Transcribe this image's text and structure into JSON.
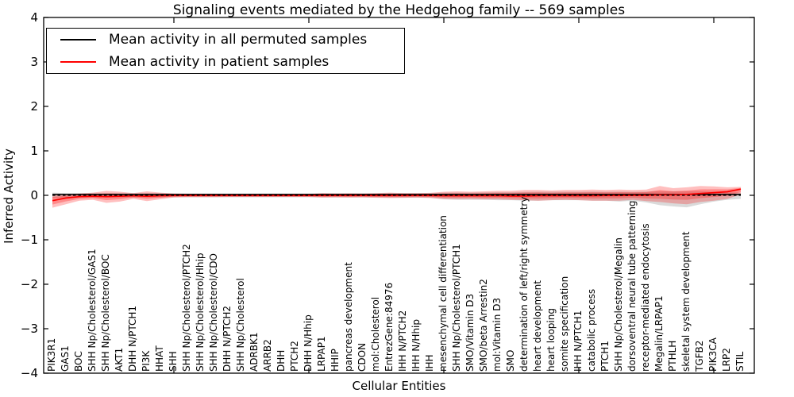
{
  "figure": {
    "title": "Signaling events mediated by the Hedgehog family -- 569 samples",
    "xlabel": "Cellular Entities",
    "ylabel": "Inferred Activity"
  },
  "legend": {
    "items": [
      {
        "label": "Mean activity in all permuted samples",
        "color": "#000000"
      },
      {
        "label": "Mean activity in patient samples",
        "color": "#ff0000"
      }
    ],
    "position": "upper left"
  },
  "colors": {
    "permuted_line": "#000000",
    "permuted_band": "#bbbbbb",
    "patient_line": "#ff0000",
    "patient_band": "#ff0000",
    "zero_line": "#000000",
    "frame": "#000000"
  },
  "chart_data": {
    "type": "line",
    "title": "Signaling events mediated by the Hedgehog family -- 569 samples",
    "xlabel": "Cellular Entities",
    "ylabel": "Inferred Activity",
    "ylim": [
      -4,
      4
    ],
    "yticks": [
      -4,
      -3,
      -2,
      -1,
      0,
      1,
      2,
      3,
      4
    ],
    "grid": false,
    "legend_position": "upper left",
    "zero_reference_line": {
      "y": 0,
      "style": "dashed",
      "color": "#000000"
    },
    "categories": [
      "PIK3R1",
      "GAS1",
      "BOC",
      "SHH Np/Cholesterol/GAS1",
      "SHH Np/Cholesterol/BOC",
      "AKT1",
      "DHH N/PTCH1",
      "PI3K",
      "HHAT",
      "SHH",
      "SHH Np/Cholesterol/PTCH2",
      "SHH Np/Cholesterol/Hhip",
      "SHH Np/Cholesterol/CDO",
      "DHH N/PTCH2",
      "SHH Np/Cholesterol",
      "ADRBK1",
      "ARRB2",
      "DHH",
      "PTCH2",
      "DHH N/Hhip",
      "LRPAP1",
      "HHIP",
      "pancreas development",
      "CDON",
      "mol:Cholesterol",
      "EntrezGene:84976",
      "IHH N/PTCH2",
      "IHH N/Hhip",
      "IHH",
      "mesenchymal cell differentiation",
      "SHH Np/Cholesterol/PTCH1",
      "SMO/Vitamin D3",
      "SMO/beta Arrestin2",
      "mol:Vitamin D3",
      "SMO",
      "determination of left/right symmetry",
      "heart development",
      "heart looping",
      "somite specification",
      "IHH N/PTCH1",
      "catabolic process",
      "PTCH1",
      "SHH Np/Cholesterol/Megalin",
      "dorsoventral neural tube patterning",
      "receptor-mediated endocytosis",
      "Megalin/LRPAP1",
      "PTHLH",
      "skeletal system development",
      "TGFB2",
      "PIK3CA",
      "LRP2",
      "STIL"
    ],
    "series": [
      {
        "name": "Mean activity in all permuted samples",
        "color": "#000000",
        "style": "solid",
        "values": [
          0.02,
          0.02,
          0.02,
          0.02,
          0.02,
          0.02,
          0.02,
          0.02,
          0.02,
          0.02,
          0.02,
          0.02,
          0.02,
          0.02,
          0.02,
          0.02,
          0.02,
          0.02,
          0.02,
          0.02,
          0.02,
          0.02,
          0.02,
          0.02,
          0.02,
          0.02,
          0.02,
          0.02,
          0.02,
          0.02,
          0.02,
          0.02,
          0.02,
          0.02,
          0.02,
          0.02,
          0.02,
          0.02,
          0.02,
          0.02,
          0.02,
          0.02,
          0.02,
          0.02,
          0.02,
          0.02,
          0.02,
          0.02,
          0.02,
          0.02,
          0.02,
          0.02
        ],
        "band_upper": [
          0.06,
          0.05,
          0.05,
          0.05,
          0.05,
          0.05,
          0.05,
          0.05,
          0.05,
          0.04,
          0.04,
          0.04,
          0.04,
          0.04,
          0.04,
          0.04,
          0.04,
          0.04,
          0.04,
          0.04,
          0.045,
          0.045,
          0.045,
          0.045,
          0.045,
          0.05,
          0.05,
          0.05,
          0.05,
          0.06,
          0.06,
          0.06,
          0.065,
          0.07,
          0.07,
          0.075,
          0.08,
          0.08,
          0.08,
          0.08,
          0.085,
          0.08,
          0.085,
          0.08,
          0.085,
          0.09,
          0.09,
          0.09,
          0.09,
          0.08,
          0.07,
          0.06
        ],
        "band_lower": [
          -0.06,
          -0.05,
          -0.05,
          -0.05,
          -0.05,
          -0.05,
          -0.05,
          -0.05,
          -0.05,
          -0.045,
          -0.045,
          -0.045,
          -0.045,
          -0.045,
          -0.045,
          -0.045,
          -0.045,
          -0.045,
          -0.045,
          -0.045,
          -0.05,
          -0.05,
          -0.05,
          -0.05,
          -0.05,
          -0.055,
          -0.055,
          -0.055,
          -0.055,
          -0.09,
          -0.1,
          -0.1,
          -0.1,
          -0.11,
          -0.11,
          -0.12,
          -0.12,
          -0.11,
          -0.11,
          -0.11,
          -0.12,
          -0.12,
          -0.14,
          -0.12,
          -0.16,
          -0.22,
          -0.25,
          -0.27,
          -0.2,
          -0.14,
          -0.1,
          -0.08
        ]
      },
      {
        "name": "Mean activity in patient samples",
        "color": "#ff0000",
        "style": "solid",
        "values": [
          -0.12,
          -0.06,
          -0.03,
          -0.02,
          -0.03,
          -0.02,
          -0.01,
          -0.02,
          -0.01,
          -0.005,
          -0.005,
          -0.005,
          -0.005,
          -0.005,
          -0.005,
          -0.005,
          -0.005,
          -0.005,
          -0.005,
          -0.005,
          -0.005,
          -0.005,
          -0.005,
          -0.005,
          -0.005,
          -0.005,
          -0.005,
          -0.005,
          -0.005,
          -0.01,
          -0.01,
          -0.01,
          -0.01,
          -0.01,
          -0.015,
          -0.015,
          -0.01,
          -0.01,
          -0.01,
          -0.01,
          -0.01,
          -0.005,
          -0.005,
          0,
          0,
          0.01,
          0.01,
          0.02,
          0.04,
          0.06,
          0.08,
          0.14
        ],
        "band_upper": [
          0.03,
          0.03,
          0.04,
          0.06,
          0.1,
          0.08,
          0.05,
          0.09,
          0.06,
          0.04,
          0.035,
          0.035,
          0.035,
          0.03,
          0.03,
          0.03,
          0.03,
          0.03,
          0.03,
          0.03,
          0.05,
          0.04,
          0.045,
          0.04,
          0.05,
          0.06,
          0.05,
          0.05,
          0.055,
          0.08,
          0.09,
          0.08,
          0.09,
          0.1,
          0.1,
          0.12,
          0.12,
          0.11,
          0.12,
          0.12,
          0.13,
          0.12,
          0.13,
          0.12,
          0.13,
          0.21,
          0.16,
          0.18,
          0.21,
          0.2,
          0.18,
          0.19
        ],
        "band_lower": [
          -0.28,
          -0.2,
          -0.12,
          -0.1,
          -0.17,
          -0.14,
          -0.08,
          -0.13,
          -0.09,
          -0.05,
          -0.04,
          -0.04,
          -0.04,
          -0.035,
          -0.035,
          -0.035,
          -0.035,
          -0.035,
          -0.035,
          -0.035,
          -0.05,
          -0.045,
          -0.05,
          -0.045,
          -0.055,
          -0.06,
          -0.055,
          -0.05,
          -0.06,
          -0.08,
          -0.085,
          -0.08,
          -0.09,
          -0.09,
          -0.1,
          -0.11,
          -0.12,
          -0.11,
          -0.1,
          -0.11,
          -0.12,
          -0.12,
          -0.12,
          -0.1,
          -0.13,
          -0.15,
          -0.18,
          -0.2,
          -0.15,
          -0.12,
          -0.08,
          0.02
        ]
      }
    ]
  }
}
